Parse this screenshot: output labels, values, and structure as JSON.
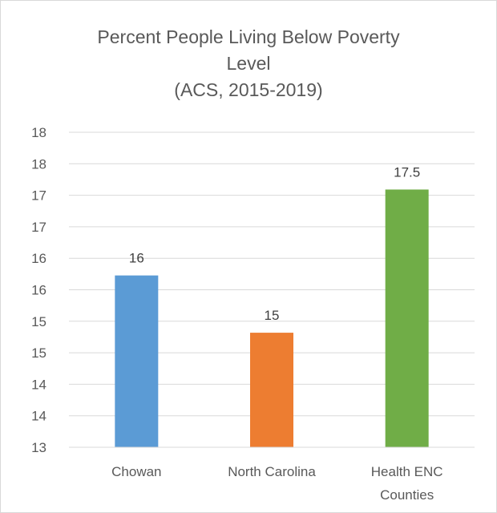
{
  "chart_data": {
    "type": "bar",
    "title_lines": [
      "Percent People Living Below Poverty",
      "Level",
      "(ACS, 2015-2019)"
    ],
    "categories": [
      [
        "Chowan"
      ],
      [
        "North Carolina"
      ],
      [
        "Health ENC",
        "Counties"
      ]
    ],
    "values": [
      16,
      15,
      17.5
    ],
    "data_labels": [
      "16",
      "15",
      "17.5"
    ],
    "colors": [
      "#5b9bd5",
      "#ed7d31",
      "#70ad47"
    ],
    "y_tick_labels": [
      "13",
      "14",
      "14",
      "15",
      "15",
      "16",
      "16",
      "17",
      "17",
      "18",
      "18"
    ],
    "ylim": [
      13,
      18.5
    ],
    "grid": true,
    "legend": "none"
  }
}
